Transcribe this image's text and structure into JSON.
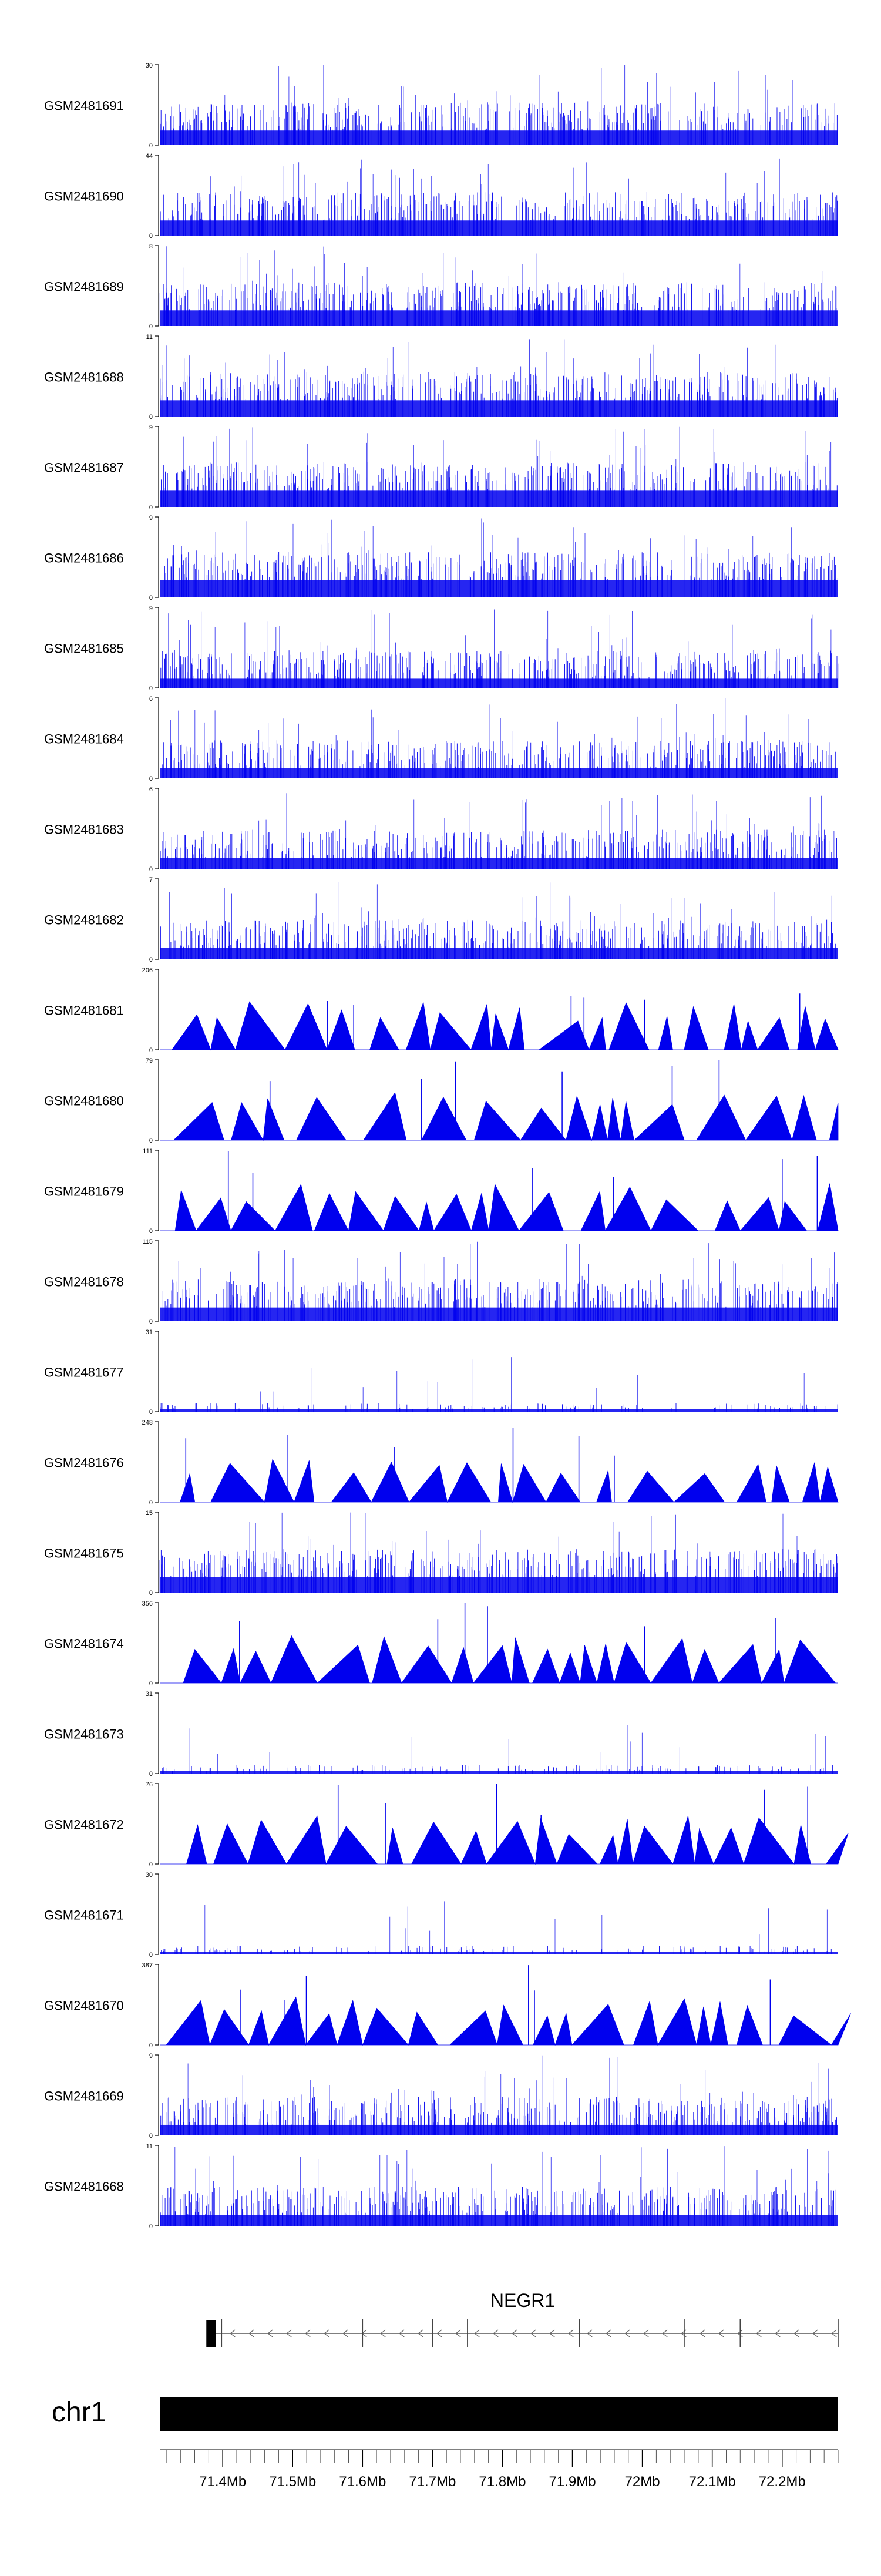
{
  "chart_data": {
    "type": "area",
    "title": "",
    "colors": {
      "signal": "#0000ee",
      "axis": "#000000",
      "label": "#000000",
      "ideogram": "#000000"
    },
    "tracks": [
      {
        "name": "GSM2481691",
        "ymax": 30,
        "ymin": 0,
        "style": "bars"
      },
      {
        "name": "GSM2481690",
        "ymax": 44,
        "ymin": 0,
        "style": "bars"
      },
      {
        "name": "GSM2481689",
        "ymax": 8,
        "ymin": 0,
        "style": "bars"
      },
      {
        "name": "GSM2481688",
        "ymax": 11,
        "ymin": 0,
        "style": "bars"
      },
      {
        "name": "GSM2481687",
        "ymax": 9,
        "ymin": 0,
        "style": "bars"
      },
      {
        "name": "GSM2481686",
        "ymax": 9,
        "ymin": 0,
        "style": "bars"
      },
      {
        "name": "GSM2481685",
        "ymax": 9,
        "ymin": 0,
        "style": "bars"
      },
      {
        "name": "GSM2481684",
        "ymax": 6,
        "ymin": 0,
        "style": "bars"
      },
      {
        "name": "GSM2481683",
        "ymax": 6,
        "ymin": 0,
        "style": "bars"
      },
      {
        "name": "GSM2481682",
        "ymax": 7,
        "ymin": 0,
        "style": "bars"
      },
      {
        "name": "GSM2481681",
        "ymax": 206,
        "ymin": 0,
        "style": "peaks"
      },
      {
        "name": "GSM2481680",
        "ymax": 79,
        "ymin": 0,
        "style": "peaks"
      },
      {
        "name": "GSM2481679",
        "ymax": 111,
        "ymin": 0,
        "style": "peaks"
      },
      {
        "name": "GSM2481678",
        "ymax": 115,
        "ymin": 0,
        "style": "bars"
      },
      {
        "name": "GSM2481677",
        "ymax": 31,
        "ymin": 0,
        "style": "sparse"
      },
      {
        "name": "GSM2481676",
        "ymax": 248,
        "ymin": 0,
        "style": "peaks"
      },
      {
        "name": "GSM2481675",
        "ymax": 15,
        "ymin": 0,
        "style": "bars"
      },
      {
        "name": "GSM2481674",
        "ymax": 356,
        "ymin": 0,
        "style": "peaks"
      },
      {
        "name": "GSM2481673",
        "ymax": 31,
        "ymin": 0,
        "style": "sparse"
      },
      {
        "name": "GSM2481672",
        "ymax": 76,
        "ymin": 0,
        "style": "peaks"
      },
      {
        "name": "GSM2481671",
        "ymax": 30,
        "ymin": 0,
        "style": "sparse"
      },
      {
        "name": "GSM2481670",
        "ymax": 387,
        "ymin": 0,
        "style": "peaks"
      },
      {
        "name": "GSM2481669",
        "ymax": 9,
        "ymin": 0,
        "style": "bars"
      },
      {
        "name": "GSM2481668",
        "ymax": 11,
        "ymin": 0,
        "style": "bars"
      }
    ],
    "gene": {
      "name": "NEGR1",
      "strand": "-",
      "start_mb": 71.39,
      "end_mb": 72.28
    },
    "chromosome": "chr1",
    "x_range_mb": [
      71.31,
      72.28
    ],
    "x_ticks": [
      {
        "value": 71.4,
        "label": "71.4Mb"
      },
      {
        "value": 71.5,
        "label": "71.5Mb"
      },
      {
        "value": 71.6,
        "label": "71.6Mb"
      },
      {
        "value": 71.7,
        "label": "71.7Mb"
      },
      {
        "value": 71.8,
        "label": "71.8Mb"
      },
      {
        "value": 71.9,
        "label": "71.9Mb"
      },
      {
        "value": 72.0,
        "label": "72Mb"
      },
      {
        "value": 72.1,
        "label": "72.1Mb"
      },
      {
        "value": 72.2,
        "label": "72.2Mb"
      }
    ]
  }
}
